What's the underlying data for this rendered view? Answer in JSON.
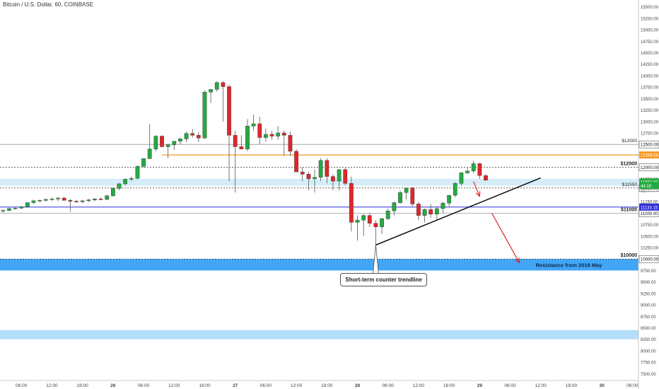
{
  "header": {
    "symbol": "Bitcoin / U.S. Dollar, 60, COINBASE"
  },
  "colors": {
    "up": "#26a942",
    "down": "#e0262b",
    "orange": "#f59a23",
    "blue": "#2f2fd6",
    "band_light": "#d4edf8",
    "band_blue": "#42a5f5",
    "band_pale": "#b3ddfa",
    "arrow": "#e0262b",
    "trend": "#000000"
  },
  "chart_data": {
    "type": "candlestick",
    "ylim": [
      7350,
      15650
    ],
    "xlim": [
      -0.5,
      104
    ],
    "y_ticks": [
      15500,
      15250,
      15000,
      14750,
      14500,
      14250,
      14000,
      13750,
      13500,
      13250,
      13000,
      12750,
      12500,
      12250,
      12000,
      11750,
      11500,
      11250,
      11000,
      10750,
      10500,
      10250,
      10000,
      9750,
      9500,
      9250,
      9000,
      8750,
      8500,
      8250,
      8000,
      7750,
      7500
    ],
    "y_tick_labels": [
      "15500.00",
      "15250.00",
      "15000.00",
      "14750.00",
      "14500.00",
      "14250.00",
      "14000.00",
      "13750.00",
      "13500.00",
      "13250.00",
      "13000.00",
      "12750.00",
      "12500.00",
      "12250.00",
      "12000.00",
      "11750.00",
      "11500.00",
      "11250.00",
      "11000.00",
      "10750.00",
      "10500.00",
      "10250.00",
      "10000.00",
      "9750.00",
      "9500.00",
      "9250.00",
      "9000.00",
      "8750.00",
      "8500.00",
      "8250.00",
      "8000.00",
      "7750.00",
      "7500.00"
    ],
    "x_ticks": [
      {
        "label": "06:00",
        "i": 3
      },
      {
        "label": "12:00",
        "i": 8
      },
      {
        "label": "18:00",
        "i": 13
      },
      {
        "label": "26",
        "i": 18
      },
      {
        "label": "06:00",
        "i": 23
      },
      {
        "label": "12:00",
        "i": 28
      },
      {
        "label": "18:00",
        "i": 33
      },
      {
        "label": "27",
        "i": 38
      },
      {
        "label": "06:00",
        "i": 43
      },
      {
        "label": "12:00",
        "i": 48
      },
      {
        "label": "18:00",
        "i": 53
      },
      {
        "label": "28",
        "i": 58
      },
      {
        "label": "06:00",
        "i": 63
      },
      {
        "label": "12:00",
        "i": 68
      },
      {
        "label": "18:00",
        "i": 73
      },
      {
        "label": "29",
        "i": 78
      },
      {
        "label": "06:00",
        "i": 83
      },
      {
        "label": "12:00",
        "i": 88
      },
      {
        "label": "18:00",
        "i": 93
      },
      {
        "label": "30",
        "i": 98
      },
      {
        "label": "06:00",
        "i": 103
      }
    ],
    "candles": [
      [
        11050,
        11080,
        11010,
        11060
      ],
      [
        11060,
        11120,
        11040,
        11100
      ],
      [
        11100,
        11130,
        11080,
        11110
      ],
      [
        11110,
        11160,
        11090,
        11140
      ],
      [
        11140,
        11240,
        11130,
        11230
      ],
      [
        11230,
        11290,
        11200,
        11270
      ],
      [
        11270,
        11300,
        11240,
        11280
      ],
      [
        11280,
        11320,
        11250,
        11300
      ],
      [
        11300,
        11340,
        11270,
        11310
      ],
      [
        11310,
        11350,
        11260,
        11330
      ],
      [
        11330,
        11360,
        11300,
        11280
      ],
      [
        11280,
        11310,
        11030,
        11260
      ],
      [
        11260,
        11290,
        11230,
        11250
      ],
      [
        11250,
        11290,
        11220,
        11270
      ],
      [
        11270,
        11310,
        11240,
        11290
      ],
      [
        11290,
        11330,
        11260,
        11310
      ],
      [
        11310,
        11340,
        11280,
        11300
      ],
      [
        11300,
        11400,
        11280,
        11380
      ],
      [
        11380,
        11560,
        11360,
        11540
      ],
      [
        11540,
        11660,
        11500,
        11640
      ],
      [
        11640,
        11760,
        11600,
        11740
      ],
      [
        11740,
        11800,
        11700,
        11760
      ],
      [
        11760,
        12040,
        11740,
        12020
      ],
      [
        12020,
        12200,
        12000,
        12190
      ],
      [
        12190,
        12950,
        12180,
        12400
      ],
      [
        12400,
        12700,
        12350,
        12680
      ],
      [
        12680,
        12700,
        12430,
        12450
      ],
      [
        12450,
        12520,
        12200,
        12490
      ],
      [
        12490,
        12560,
        12380,
        12570
      ],
      [
        12570,
        12650,
        12500,
        12620
      ],
      [
        12620,
        12780,
        12550,
        12740
      ],
      [
        12740,
        12840,
        12650,
        12700
      ],
      [
        12700,
        12780,
        12550,
        12640
      ],
      [
        12640,
        13680,
        12620,
        13640
      ],
      [
        13640,
        13700,
        13400,
        13700
      ],
      [
        13700,
        13880,
        13650,
        13850
      ],
      [
        13850,
        13880,
        13000,
        13760
      ],
      [
        13760,
        13800,
        11700,
        12700
      ],
      [
        12700,
        12800,
        11450,
        12450
      ],
      [
        12450,
        12700,
        12400,
        12400
      ],
      [
        12400,
        13050,
        12350,
        12900
      ],
      [
        12900,
        13150,
        12800,
        12950
      ],
      [
        12950,
        13100,
        12500,
        12650
      ],
      [
        12650,
        12850,
        12550,
        12720
      ],
      [
        12720,
        12800,
        12600,
        12680
      ],
      [
        12680,
        12900,
        12600,
        12750
      ],
      [
        12750,
        12800,
        12250,
        12700
      ],
      [
        12700,
        12780,
        12250,
        12350
      ],
      [
        12350,
        12400,
        11950,
        11900
      ],
      [
        11900,
        12000,
        11700,
        11850
      ],
      [
        11850,
        11900,
        11500,
        11750
      ],
      [
        11750,
        11950,
        11450,
        11780
      ],
      [
        11780,
        12200,
        11700,
        12150
      ],
      [
        12150,
        12200,
        11650,
        11800
      ],
      [
        11800,
        11850,
        11500,
        11700
      ],
      [
        11700,
        11950,
        11500,
        11950
      ],
      [
        11950,
        12000,
        11600,
        11650
      ],
      [
        11650,
        11800,
        10600,
        10800
      ],
      [
        10800,
        10950,
        10400,
        10850
      ],
      [
        10850,
        10980,
        10500,
        10950
      ],
      [
        10950,
        11000,
        10700,
        10780
      ],
      [
        10780,
        10850,
        10300,
        10700
      ],
      [
        10700,
        10900,
        10550,
        10880
      ],
      [
        10880,
        11100,
        10850,
        11050
      ],
      [
        11050,
        11250,
        10950,
        11230
      ],
      [
        11230,
        11500,
        11200,
        11450
      ],
      [
        11450,
        11550,
        11300,
        11550
      ],
      [
        11550,
        11580,
        11150,
        11200
      ],
      [
        11200,
        11250,
        10850,
        10950
      ],
      [
        10950,
        11100,
        10800,
        11080
      ],
      [
        11080,
        11200,
        10900,
        10980
      ],
      [
        10980,
        11150,
        10850,
        11100
      ],
      [
        11100,
        11250,
        11000,
        11220
      ],
      [
        11220,
        11400,
        11150,
        11390
      ],
      [
        11390,
        11680,
        11350,
        11650
      ],
      [
        11650,
        11900,
        11600,
        11880
      ],
      [
        11880,
        12000,
        11850,
        11920
      ],
      [
        11920,
        12150,
        11880,
        12080
      ],
      [
        12080,
        12100,
        11750,
        11820
      ],
      [
        11820,
        11850,
        11700,
        11720
      ]
    ],
    "levels": [
      {
        "value": 12500,
        "label": "$12500"
      },
      {
        "value": 12000,
        "label": "$12000"
      },
      {
        "value": 11550,
        "label": "$11550"
      },
      {
        "value": 11000,
        "label": "$11000"
      },
      {
        "value": 10000,
        "label": "$10000"
      }
    ],
    "price_tags": [
      {
        "value": 12269.56,
        "label": "12269.56"
      },
      {
        "value": 11682.0,
        "label": "11682.00"
      },
      {
        "value": 11603.0,
        "label": "44:19"
      },
      {
        "value": 11133.15,
        "label": "11133.15"
      }
    ],
    "zones": [
      {
        "from": 11600,
        "to": 11750
      },
      {
        "from": 9750,
        "to": 10000,
        "label": "Resistance from 2018 May"
      },
      {
        "from": 8250,
        "to": 8450
      }
    ],
    "orange_line": {
      "value": 12269.56,
      "from_i": 26
    },
    "blue_line": {
      "value": 11133.15
    },
    "trendline": {
      "from": [
        61,
        10305
      ],
      "to": [
        88,
        11770
      ]
    },
    "callout": {
      "text": "Short-term counter trendline",
      "anchor": [
        61,
        10305
      ]
    },
    "arrows": [
      {
        "from": [
          77,
          11690
        ],
        "to": [
          78,
          11370
        ]
      },
      {
        "from": [
          80,
          11000
        ],
        "to": [
          84.5,
          9920
        ]
      }
    ]
  }
}
